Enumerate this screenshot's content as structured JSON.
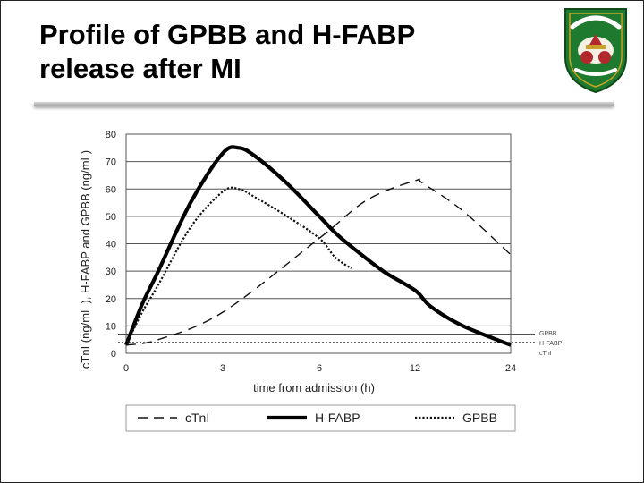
{
  "slide": {
    "title_line1": "Profile of GPBB and H-FABP",
    "title_line2": "release after MI"
  },
  "logo": {
    "icon": "university-crest-icon",
    "colors": {
      "green": "#1e7a2e",
      "gold": "#c9a227",
      "red": "#b3282d"
    }
  },
  "chart_data": {
    "type": "line",
    "xlabel": "time from admission (h)",
    "ylabel": "cTnI (ng/mL ), H-FABP and GPBB (ng/mL)",
    "x_tick_labels": [
      "0",
      "3",
      "6",
      "12",
      "24"
    ],
    "y_ticks": [
      0,
      10,
      20,
      30,
      40,
      50,
      60,
      70,
      80
    ],
    "ylim": [
      0,
      80
    ],
    "grid": "horizontal",
    "legend": {
      "position": "bottom",
      "entries": [
        "cTnI",
        "H-FABP",
        "GPBB"
      ]
    },
    "side_labels": [
      "GPBB",
      "H-FABP",
      "cTnI"
    ],
    "series": [
      {
        "name": "cTnI",
        "style": "dashed",
        "x": [
          "0",
          "1",
          "3",
          "6",
          "9",
          "12",
          "13",
          "18",
          "24"
        ],
        "y": [
          3,
          5,
          15,
          42,
          56,
          63,
          62,
          52,
          36
        ]
      },
      {
        "name": "H-FABP",
        "style": "solid-thick",
        "x": [
          "0",
          "0.5",
          "1",
          "2",
          "3",
          "3.5",
          "4",
          "5",
          "6",
          "7",
          "8",
          "10",
          "12",
          "14",
          "18",
          "24"
        ],
        "y": [
          3,
          18,
          30,
          55,
          73,
          75,
          72,
          62,
          50,
          44,
          39,
          30,
          23,
          17,
          10,
          3
        ]
      },
      {
        "name": "GPBB",
        "style": "dotted",
        "x": [
          "0",
          "0.5",
          "1",
          "2",
          "3",
          "3.5",
          "4",
          "5",
          "6",
          "7",
          "8"
        ],
        "y": [
          3,
          15,
          25,
          46,
          59,
          60,
          57,
          50,
          42,
          35,
          31
        ]
      }
    ],
    "reference_lines": [
      {
        "name": "GPBB",
        "y": 7,
        "style": "solid-thin"
      },
      {
        "name": "cTnI",
        "y": 4,
        "style": "dotted"
      }
    ]
  }
}
